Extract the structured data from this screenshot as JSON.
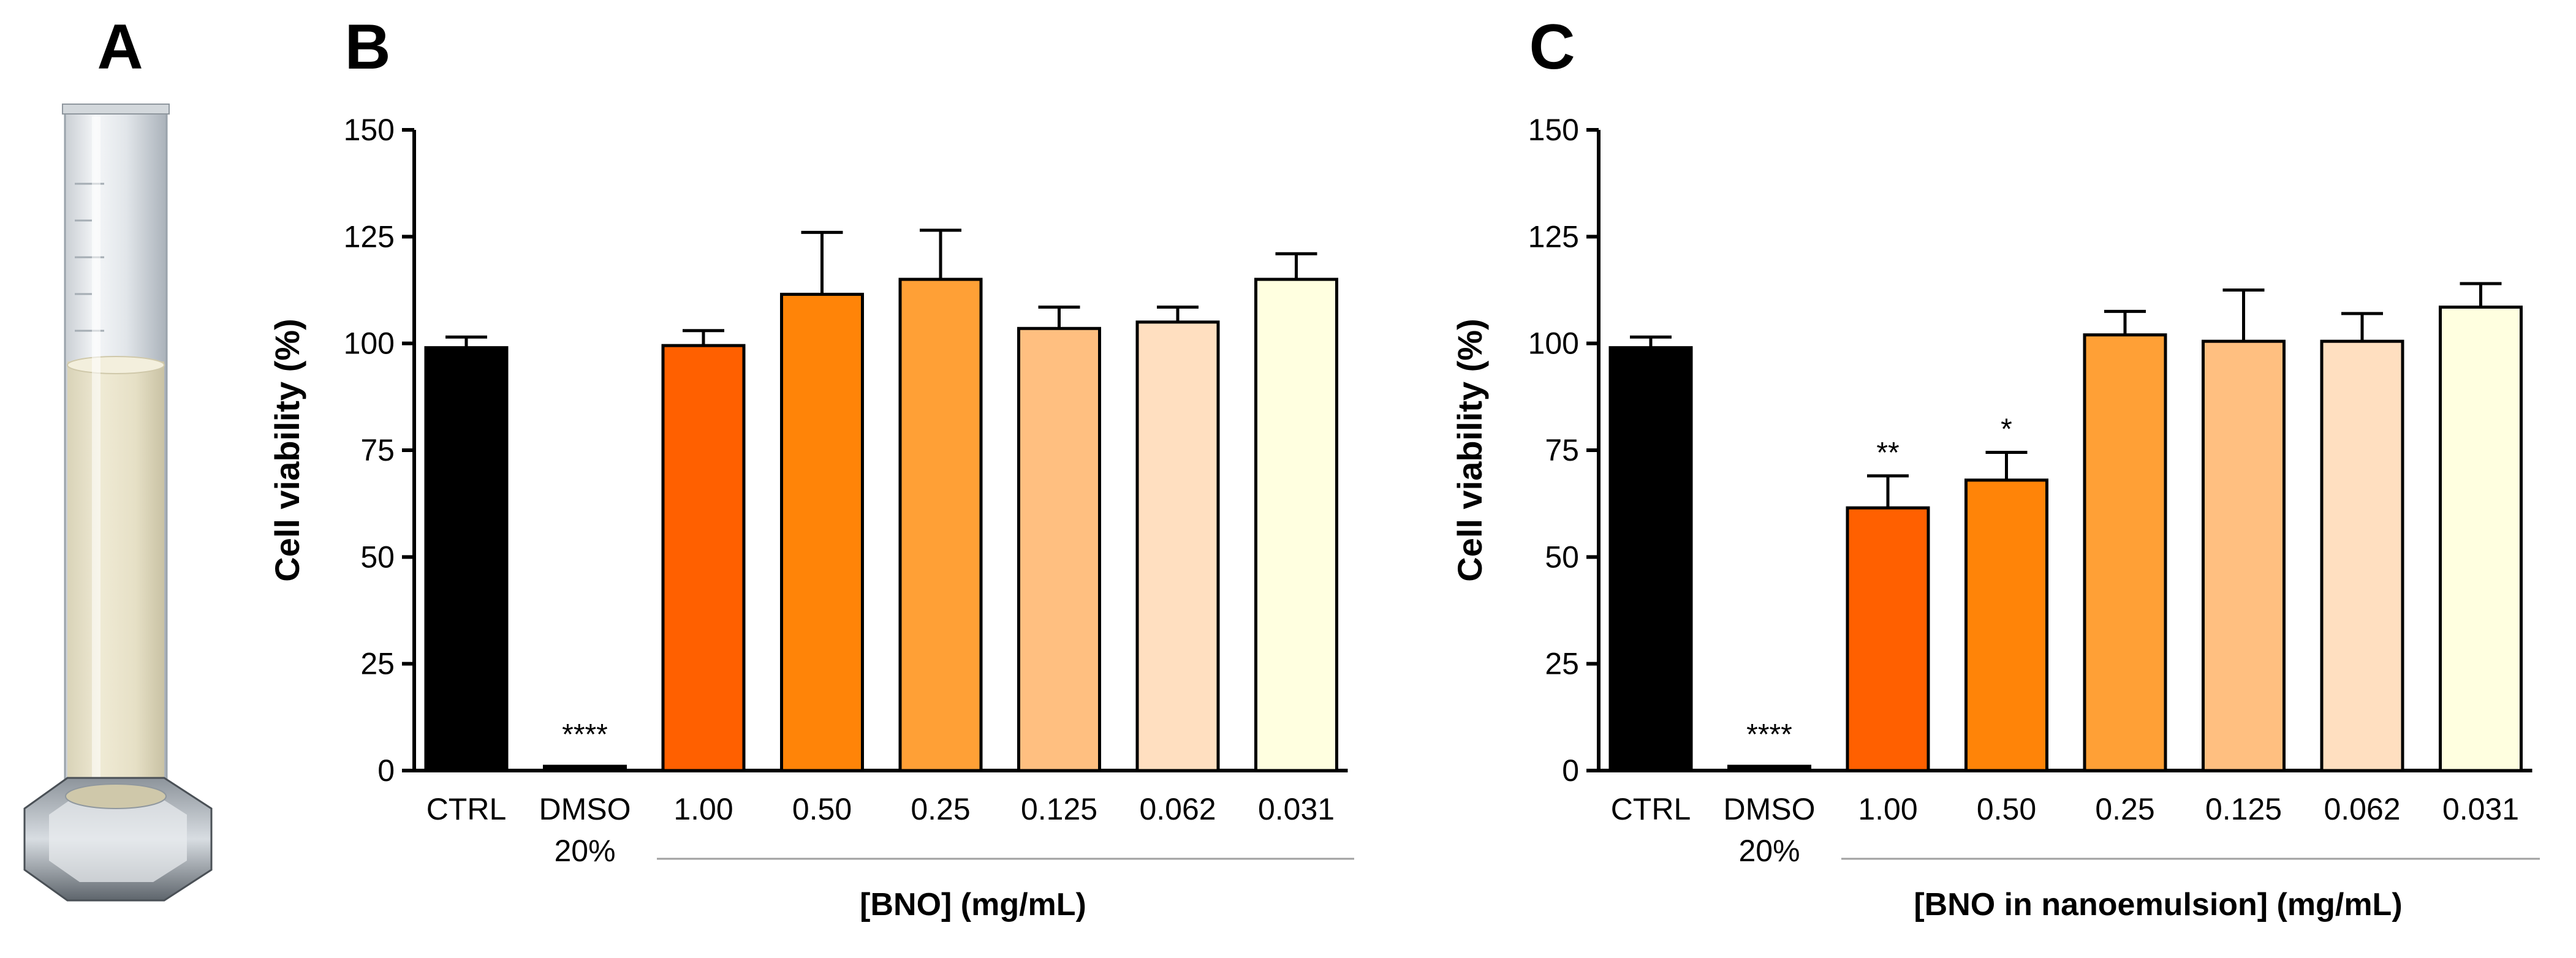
{
  "panels": {
    "a": {
      "letter": "A"
    },
    "b": {
      "letter": "B"
    },
    "c": {
      "letter": "C"
    }
  },
  "chart_data": [
    {
      "panel": "B",
      "type": "bar",
      "ylabel": "Cell viability (%)",
      "xlabel": "[BNO] (mg/mL)",
      "ylim": [
        0,
        150
      ],
      "yticks": [
        0,
        25,
        50,
        75,
        100,
        125,
        150
      ],
      "grid": false,
      "categories": [
        "CTRL",
        "DMSO\n20%",
        "1.00",
        "0.50",
        "0.25",
        "0.125",
        "0.062",
        "0.031"
      ],
      "values": [
        99,
        1,
        99.5,
        111.5,
        115,
        103.5,
        105,
        115
      ],
      "errors": [
        2.5,
        0,
        3.5,
        14.5,
        11.5,
        5,
        3.5,
        6
      ],
      "colors": [
        "#000000",
        "#000000",
        "#ff6000",
        "#ff8408",
        "#ffa036",
        "#ffbf80",
        "#ffdfc0",
        "#ffffe0"
      ],
      "significance": [
        "",
        "****",
        "",
        "",
        "",
        "",
        "",
        ""
      ],
      "group_bracket_from": 2
    },
    {
      "panel": "C",
      "type": "bar",
      "ylabel": "Cell viability (%)",
      "xlabel": "[BNO in nanoemulsion] (mg/mL)",
      "ylim": [
        0,
        150
      ],
      "yticks": [
        0,
        25,
        50,
        75,
        100,
        125,
        150
      ],
      "grid": false,
      "categories": [
        "CTRL",
        "DMSO\n20%",
        "1.00",
        "0.50",
        "0.25",
        "0.125",
        "0.062",
        "0.031"
      ],
      "values": [
        99,
        1,
        61.5,
        68,
        102,
        100.5,
        100.5,
        108.5
      ],
      "errors": [
        2.5,
        0,
        7.5,
        6.5,
        5.5,
        12,
        6.5,
        5.5
      ],
      "colors": [
        "#000000",
        "#000000",
        "#ff6000",
        "#ff8408",
        "#ffa036",
        "#ffbf80",
        "#ffdfc0",
        "#ffffe0"
      ],
      "significance": [
        "",
        "****",
        "**",
        "*",
        "",
        "",
        "",
        ""
      ],
      "group_bracket_from": 2
    }
  ]
}
